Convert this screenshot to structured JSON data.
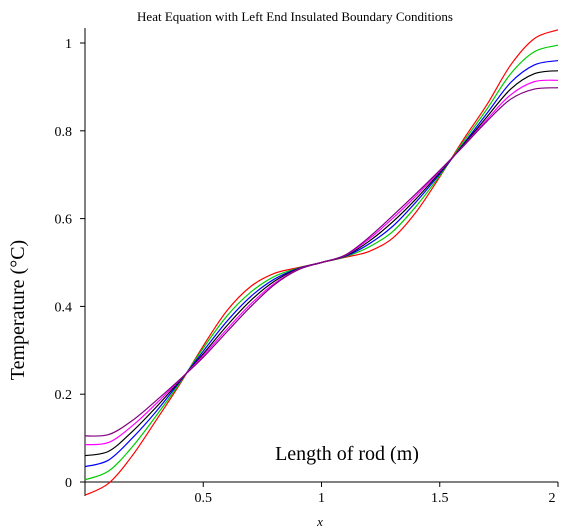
{
  "chart_data": {
    "type": "line",
    "title": "Heat Equation with Left End Insulated Boundary Conditions",
    "xlabel": "x",
    "ylabel": "Temperature (°C)",
    "annotation": "Length of rod (m)",
    "xlim": [
      0,
      2
    ],
    "ylim": [
      -0.03,
      1.05
    ],
    "xticks": [
      {
        "value": 0.5,
        "label": "0.5"
      },
      {
        "value": 1,
        "label": "1"
      },
      {
        "value": 1.5,
        "label": "1.5"
      },
      {
        "value": 2,
        "label": "2"
      }
    ],
    "yticks": [
      {
        "value": 0,
        "label": "0"
      },
      {
        "value": 0.2,
        "label": "0.2"
      },
      {
        "value": 0.4,
        "label": "0.4"
      },
      {
        "value": 0.6,
        "label": "0.6"
      },
      {
        "value": 0.8,
        "label": "0.8"
      },
      {
        "value": 1,
        "label": "1"
      }
    ],
    "grid": false,
    "legend": "none",
    "x": [
      0,
      0.1,
      0.2,
      0.3,
      0.4,
      0.5,
      0.6,
      0.7,
      0.8,
      0.9,
      1.0,
      1.1,
      1.2,
      1.3,
      1.4,
      1.5,
      1.6,
      1.7,
      1.8,
      1.9,
      2.0
    ],
    "series": [
      {
        "color": "#ff0000",
        "values": [
          -0.03,
          -0.003,
          0.06,
          0.14,
          0.222,
          0.31,
          0.39,
          0.445,
          0.475,
          0.488,
          0.5,
          0.512,
          0.525,
          0.555,
          0.615,
          0.695,
          0.78,
          0.86,
          0.95,
          1.01,
          1.03
        ]
      },
      {
        "color": "#00cc00",
        "values": [
          0.005,
          0.025,
          0.08,
          0.15,
          0.225,
          0.305,
          0.378,
          0.432,
          0.468,
          0.487,
          0.5,
          0.513,
          0.535,
          0.57,
          0.628,
          0.698,
          0.775,
          0.85,
          0.93,
          0.98,
          0.995
        ]
      },
      {
        "color": "#0000ff",
        "values": [
          0.035,
          0.05,
          0.1,
          0.16,
          0.228,
          0.298,
          0.366,
          0.422,
          0.462,
          0.486,
          0.5,
          0.514,
          0.542,
          0.582,
          0.638,
          0.702,
          0.77,
          0.84,
          0.91,
          0.95,
          0.96
        ]
      },
      {
        "color": "#000000",
        "values": [
          0.06,
          0.07,
          0.115,
          0.17,
          0.23,
          0.292,
          0.356,
          0.413,
          0.457,
          0.485,
          0.5,
          0.515,
          0.548,
          0.592,
          0.645,
          0.705,
          0.768,
          0.832,
          0.895,
          0.93,
          0.937
        ]
      },
      {
        "color": "#ff00ff",
        "values": [
          0.085,
          0.09,
          0.128,
          0.178,
          0.232,
          0.288,
          0.348,
          0.405,
          0.452,
          0.484,
          0.5,
          0.516,
          0.553,
          0.6,
          0.652,
          0.708,
          0.766,
          0.826,
          0.882,
          0.912,
          0.915
        ]
      },
      {
        "color": "#800080",
        "values": [
          0.105,
          0.108,
          0.14,
          0.185,
          0.233,
          0.284,
          0.342,
          0.399,
          0.449,
          0.483,
          0.5,
          0.517,
          0.557,
          0.606,
          0.657,
          0.71,
          0.765,
          0.822,
          0.872,
          0.895,
          0.898
        ]
      }
    ]
  }
}
